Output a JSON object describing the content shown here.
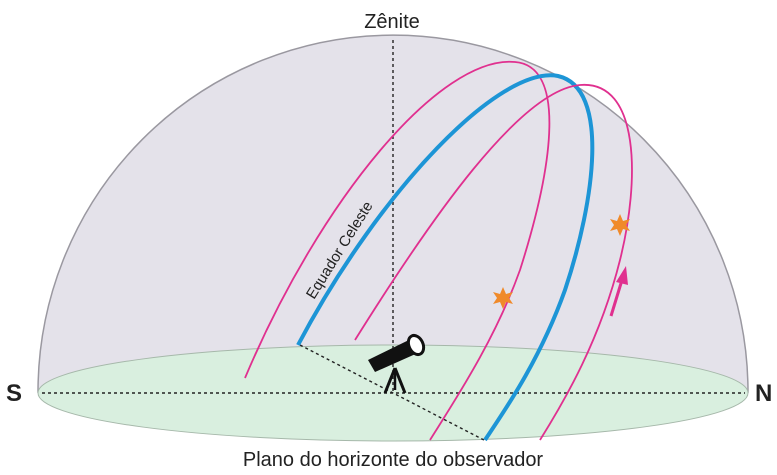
{
  "diagram": {
    "zenith_label": "Zênite",
    "equator_label": "Equador Celeste",
    "south_label": "S",
    "north_label": "N",
    "caption": "Plano do horizonte do observador"
  }
}
